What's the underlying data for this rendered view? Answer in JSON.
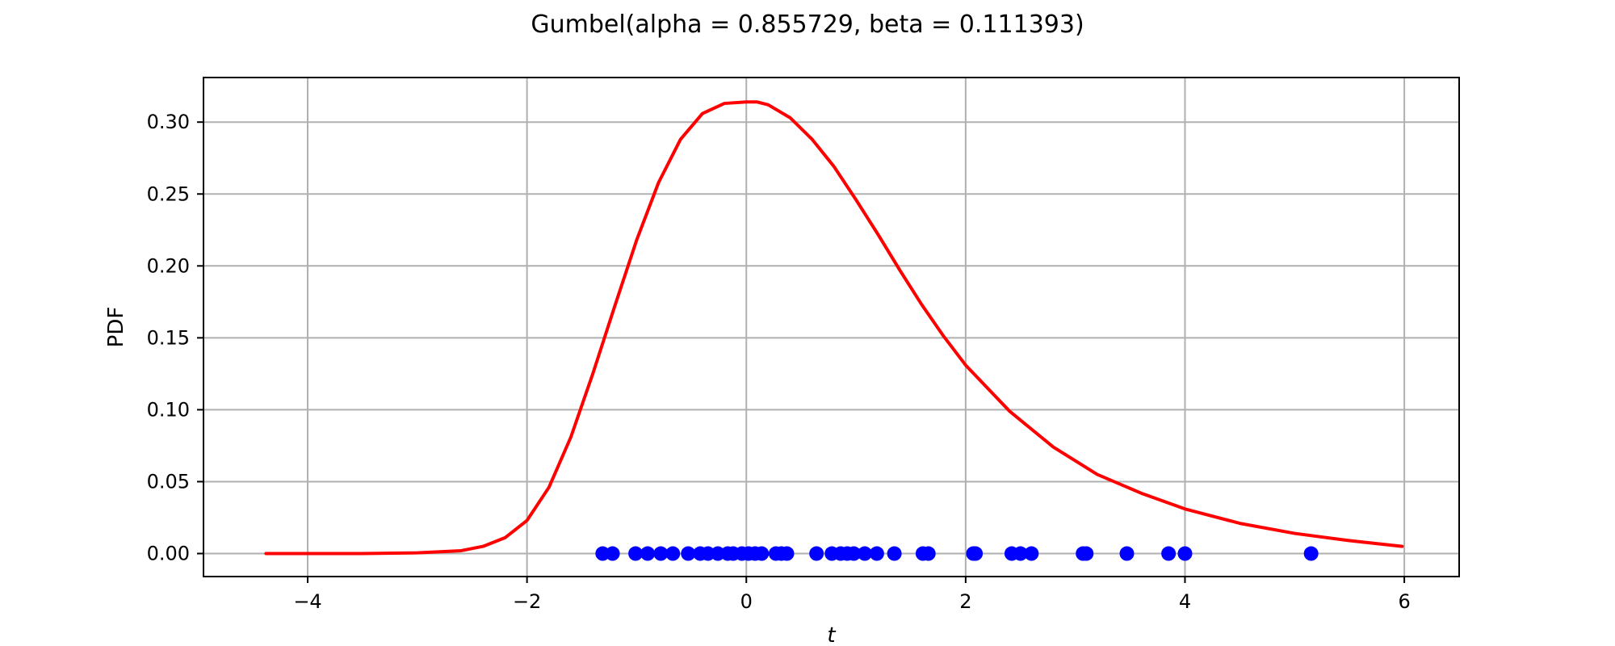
{
  "chart_data": {
    "type": "line",
    "title": "Gumbel(alpha = 0.855729, beta = 0.111393)",
    "xlabel": "t",
    "ylabel": "PDF",
    "xlim": [
      -4.95,
      6.5
    ],
    "ylim": [
      -0.016,
      0.331
    ],
    "x_ticks": [
      -4,
      -2,
      0,
      2,
      4,
      6
    ],
    "x_tick_labels": [
      "−4",
      "−2",
      "0",
      "2",
      "4",
      "6"
    ],
    "y_ticks": [
      0.0,
      0.05,
      0.1,
      0.15,
      0.2,
      0.25,
      0.3
    ],
    "y_tick_labels": [
      "0.00",
      "0.05",
      "0.10",
      "0.15",
      "0.20",
      "0.25",
      "0.30"
    ],
    "grid": true,
    "series": [
      {
        "kind": "line",
        "color": "#ff0000",
        "x": [
          -4.38,
          -3.5,
          -3.0,
          -2.6,
          -2.4,
          -2.2,
          -2.0,
          -1.8,
          -1.6,
          -1.4,
          -1.2,
          -1.0,
          -0.8,
          -0.6,
          -0.4,
          -0.2,
          0.0,
          0.1,
          0.2,
          0.4,
          0.6,
          0.8,
          1.0,
          1.2,
          1.4,
          1.6,
          1.8,
          2.0,
          2.4,
          2.8,
          3.2,
          3.6,
          4.0,
          4.5,
          5.0,
          5.5,
          5.98
        ],
        "y": [
          0.0,
          0.0,
          0.0005,
          0.002,
          0.005,
          0.011,
          0.023,
          0.046,
          0.081,
          0.125,
          0.172,
          0.218,
          0.258,
          0.288,
          0.306,
          0.313,
          0.314,
          0.314,
          0.312,
          0.303,
          0.288,
          0.269,
          0.246,
          0.222,
          0.197,
          0.173,
          0.151,
          0.131,
          0.099,
          0.074,
          0.055,
          0.042,
          0.031,
          0.021,
          0.014,
          0.009,
          0.005
        ]
      },
      {
        "kind": "scatter",
        "color": "#0000ff",
        "x": [
          -1.31,
          -1.22,
          -1.01,
          -0.9,
          -0.78,
          -0.67,
          -0.53,
          -0.42,
          -0.35,
          -0.26,
          -0.17,
          -0.12,
          -0.04,
          0.02,
          0.08,
          0.14,
          0.27,
          0.32,
          0.37,
          0.64,
          0.78,
          0.86,
          0.92,
          0.98,
          1.08,
          1.19,
          1.35,
          1.61,
          1.66,
          2.07,
          2.09,
          2.42,
          2.5,
          2.6,
          3.07,
          3.1,
          3.47,
          3.85,
          4.0,
          5.15
        ],
        "y": [
          0,
          0,
          0,
          0,
          0,
          0,
          0,
          0,
          0,
          0,
          0,
          0,
          0,
          0,
          0,
          0,
          0,
          0,
          0,
          0,
          0,
          0,
          0,
          0,
          0,
          0,
          0,
          0,
          0,
          0,
          0,
          0,
          0,
          0,
          0,
          0,
          0,
          0,
          0,
          0
        ]
      }
    ]
  }
}
